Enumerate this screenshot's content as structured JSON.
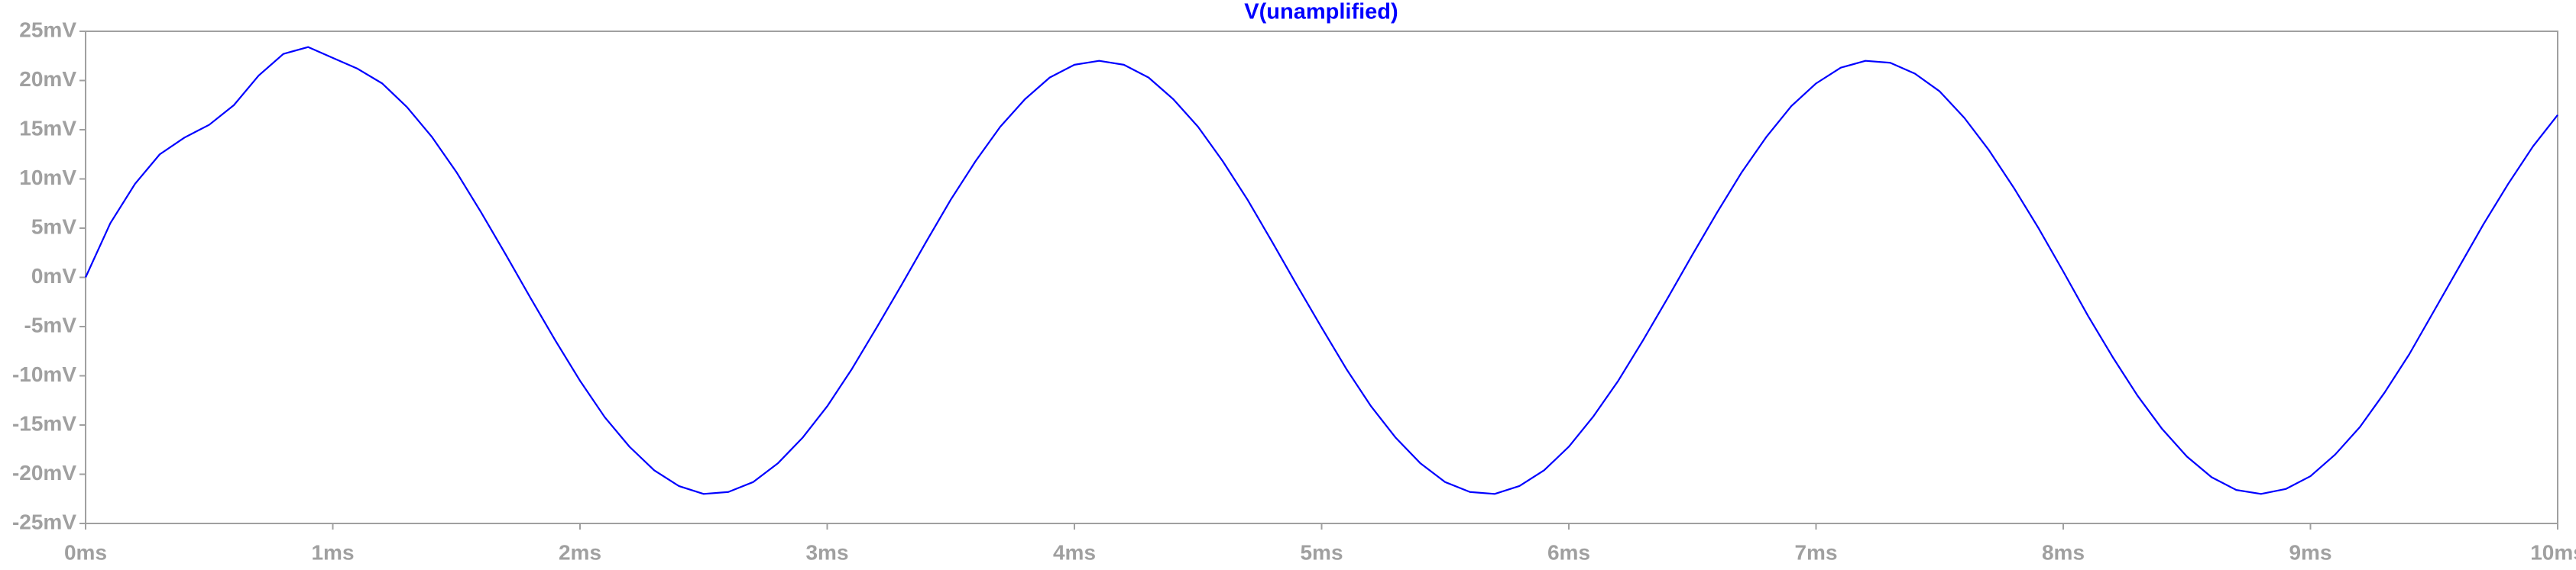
{
  "chart_data": {
    "type": "line",
    "title": "V(unamplified)",
    "xlim": [
      0,
      10
    ],
    "ylim": [
      -25,
      25
    ],
    "xticks": [
      {
        "value": 0,
        "label": "0ms"
      },
      {
        "value": 1,
        "label": "1ms"
      },
      {
        "value": 2,
        "label": "2ms"
      },
      {
        "value": 3,
        "label": "3ms"
      },
      {
        "value": 4,
        "label": "4ms"
      },
      {
        "value": 5,
        "label": "5ms"
      },
      {
        "value": 6,
        "label": "6ms"
      },
      {
        "value": 7,
        "label": "7ms"
      },
      {
        "value": 8,
        "label": "8ms"
      },
      {
        "value": 9,
        "label": "9ms"
      },
      {
        "value": 10,
        "label": "10ms"
      }
    ],
    "yticks": [
      {
        "value": -25,
        "label": "-25mV"
      },
      {
        "value": -20,
        "label": "-20mV"
      },
      {
        "value": -15,
        "label": "-15mV"
      },
      {
        "value": -10,
        "label": "-10mV"
      },
      {
        "value": -5,
        "label": "-5mV"
      },
      {
        "value": 0,
        "label": "0mV"
      },
      {
        "value": 5,
        "label": "5mV"
      },
      {
        "value": 10,
        "label": "10mV"
      },
      {
        "value": 15,
        "label": "15mV"
      },
      {
        "value": 20,
        "label": "20mV"
      },
      {
        "value": 25,
        "label": "25mV"
      }
    ],
    "grid": false,
    "x": [
      0,
      0.1,
      0.2,
      0.3,
      0.4,
      0.5,
      0.6,
      0.7,
      0.8,
      0.9,
      1,
      1.1,
      1.2,
      1.3,
      1.4,
      1.5,
      1.6,
      1.7,
      1.8,
      1.9,
      2,
      2.1,
      2.2,
      2.3,
      2.4,
      2.5,
      2.6,
      2.7,
      2.8,
      2.9,
      3,
      3.1,
      3.2,
      3.3,
      3.4,
      3.5,
      3.6,
      3.7,
      3.8,
      3.9,
      4,
      4.1,
      4.2,
      4.3,
      4.4,
      4.5,
      4.6,
      4.7,
      4.8,
      4.9,
      5,
      5.1,
      5.2,
      5.3,
      5.4,
      5.5,
      5.6,
      5.7,
      5.8,
      5.9,
      6,
      6.1,
      6.2,
      6.3,
      6.4,
      6.5,
      6.6,
      6.7,
      6.8,
      6.9,
      7,
      7.1,
      7.2,
      7.3,
      7.4,
      7.5,
      7.6,
      7.7,
      7.8,
      7.9,
      8,
      8.1,
      8.2,
      8.3,
      8.4,
      8.5,
      8.6,
      8.7,
      8.8,
      8.9,
      9,
      9.1,
      9.2,
      9.3,
      9.4,
      9.5,
      9.6,
      9.7,
      9.8,
      9.9,
      10
    ],
    "series": [
      {
        "name": "V(unamplified)",
        "color": "#0000ff",
        "values": [
          0,
          5.5,
          9.5,
          12.5,
          14.2,
          15.5,
          17.5,
          20.5,
          22.7,
          23.4,
          22.3,
          21.2,
          19.7,
          17.3,
          14.3,
          10.7,
          6.6,
          2.3,
          -2.1,
          -6.4,
          -10.5,
          -14.2,
          -17.2,
          -19.6,
          -21.2,
          -22.0,
          -21.8,
          -20.8,
          -18.9,
          -16.3,
          -13.1,
          -9.3,
          -5.1,
          -0.8,
          3.6,
          7.9,
          11.8,
          15.3,
          18.1,
          20.3,
          21.6,
          22.0,
          21.6,
          20.3,
          18.1,
          15.3,
          11.8,
          7.9,
          3.6,
          -0.8,
          -5.1,
          -9.3,
          -13.1,
          -16.3,
          -18.9,
          -20.8,
          -21.8,
          -22.0,
          -21.2,
          -19.6,
          -17.2,
          -14.1,
          -10.5,
          -6.4,
          -2.1,
          2.3,
          6.6,
          10.7,
          14.3,
          17.4,
          19.7,
          21.3,
          22.0,
          21.8,
          20.7,
          18.9,
          16.2,
          12.9,
          9.1,
          5.0,
          0.6,
          -3.9,
          -8.1,
          -12.0,
          -15.4,
          -18.2,
          -20.3,
          -21.6,
          -22.0,
          -21.5,
          -20.2,
          -18.0,
          -15.2,
          -11.7,
          -7.8,
          -3.4,
          1.0,
          5.4,
          9.5,
          13.3,
          16.5
        ]
      }
    ]
  }
}
